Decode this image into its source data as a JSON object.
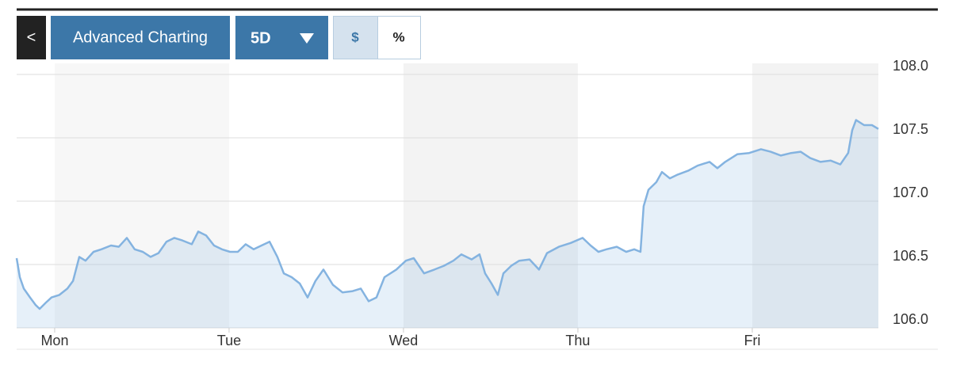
{
  "toolbar": {
    "buttons": [
      "<",
      "Advanced Charting",
      "5D",
      "$",
      "%"
    ]
  },
  "chart_data": {
    "type": "line",
    "x": [
      -0.218,
      -0.2,
      -0.177,
      -0.141,
      -0.109,
      -0.086,
      -0.05,
      -0.018,
      0.027,
      0.073,
      0.105,
      0.141,
      0.177,
      0.223,
      0.268,
      0.323,
      0.368,
      0.414,
      0.459,
      0.505,
      0.55,
      0.595,
      0.641,
      0.686,
      0.732,
      0.786,
      0.823,
      0.868,
      0.914,
      0.959,
      1.005,
      1.05,
      1.095,
      1.141,
      1.186,
      1.232,
      1.277,
      1.314,
      1.359,
      1.405,
      1.45,
      1.495,
      1.541,
      1.595,
      1.65,
      1.709,
      1.755,
      1.8,
      1.845,
      1.891,
      1.959,
      2.014,
      2.059,
      2.118,
      2.177,
      2.232,
      2.286,
      2.332,
      2.391,
      2.436,
      2.468,
      2.505,
      2.541,
      2.573,
      2.618,
      2.664,
      2.723,
      2.777,
      2.823,
      2.891,
      2.959,
      3.027,
      3.073,
      3.118,
      3.164,
      3.223,
      3.277,
      3.323,
      3.359,
      3.377,
      3.405,
      3.45,
      3.482,
      3.527,
      3.573,
      3.632,
      3.686,
      3.755,
      3.8,
      3.845,
      3.914,
      3.982,
      4.05,
      4.105,
      4.164,
      4.223,
      4.277,
      4.332,
      4.391,
      4.45,
      4.505,
      4.55,
      4.573,
      4.595,
      4.641,
      4.686,
      4.723
    ],
    "values": [
      106.55,
      106.4,
      106.31,
      106.24,
      106.18,
      106.15,
      106.2,
      106.24,
      106.26,
      106.31,
      106.37,
      106.56,
      106.53,
      106.6,
      106.62,
      106.65,
      106.64,
      106.71,
      106.62,
      106.6,
      106.56,
      106.59,
      106.68,
      106.71,
      106.69,
      106.66,
      106.76,
      106.73,
      106.65,
      106.62,
      106.6,
      106.6,
      106.66,
      106.62,
      106.65,
      106.68,
      106.56,
      106.43,
      106.4,
      106.35,
      106.24,
      106.37,
      106.46,
      106.34,
      106.28,
      106.29,
      106.31,
      106.21,
      106.24,
      106.4,
      106.46,
      106.53,
      106.55,
      106.43,
      106.46,
      106.49,
      106.53,
      106.58,
      106.54,
      106.58,
      106.43,
      106.35,
      106.26,
      106.43,
      106.49,
      106.53,
      106.54,
      106.46,
      106.59,
      106.64,
      106.67,
      106.71,
      106.65,
      106.6,
      106.62,
      106.64,
      106.6,
      106.62,
      106.6,
      106.96,
      107.09,
      107.15,
      107.23,
      107.18,
      107.21,
      107.24,
      107.28,
      107.31,
      107.26,
      107.31,
      107.37,
      107.38,
      107.41,
      107.39,
      107.36,
      107.38,
      107.39,
      107.34,
      107.31,
      107.32,
      107.29,
      107.38,
      107.56,
      107.64,
      107.6,
      107.6,
      107.57
    ],
    "color": "#84b3e0",
    "xlim": [
      -0.218,
      4.723
    ],
    "xticks": [
      {
        "value": 0,
        "label": "Mon"
      },
      {
        "value": 1,
        "label": "Tue"
      },
      {
        "value": 2,
        "label": "Wed"
      },
      {
        "value": 3,
        "label": "Thu"
      },
      {
        "value": 4,
        "label": "Fri"
      }
    ],
    "ylim": [
      106.0,
      108.0
    ],
    "yticks": [
      {
        "value": 106,
        "label": "106.0"
      },
      {
        "value": 106.5,
        "label": "106.5"
      },
      {
        "value": 107,
        "label": "107.0"
      },
      {
        "value": 107.5,
        "label": "107.5"
      },
      {
        "value": 108,
        "label": "108.0"
      }
    ],
    "grid": true
  }
}
